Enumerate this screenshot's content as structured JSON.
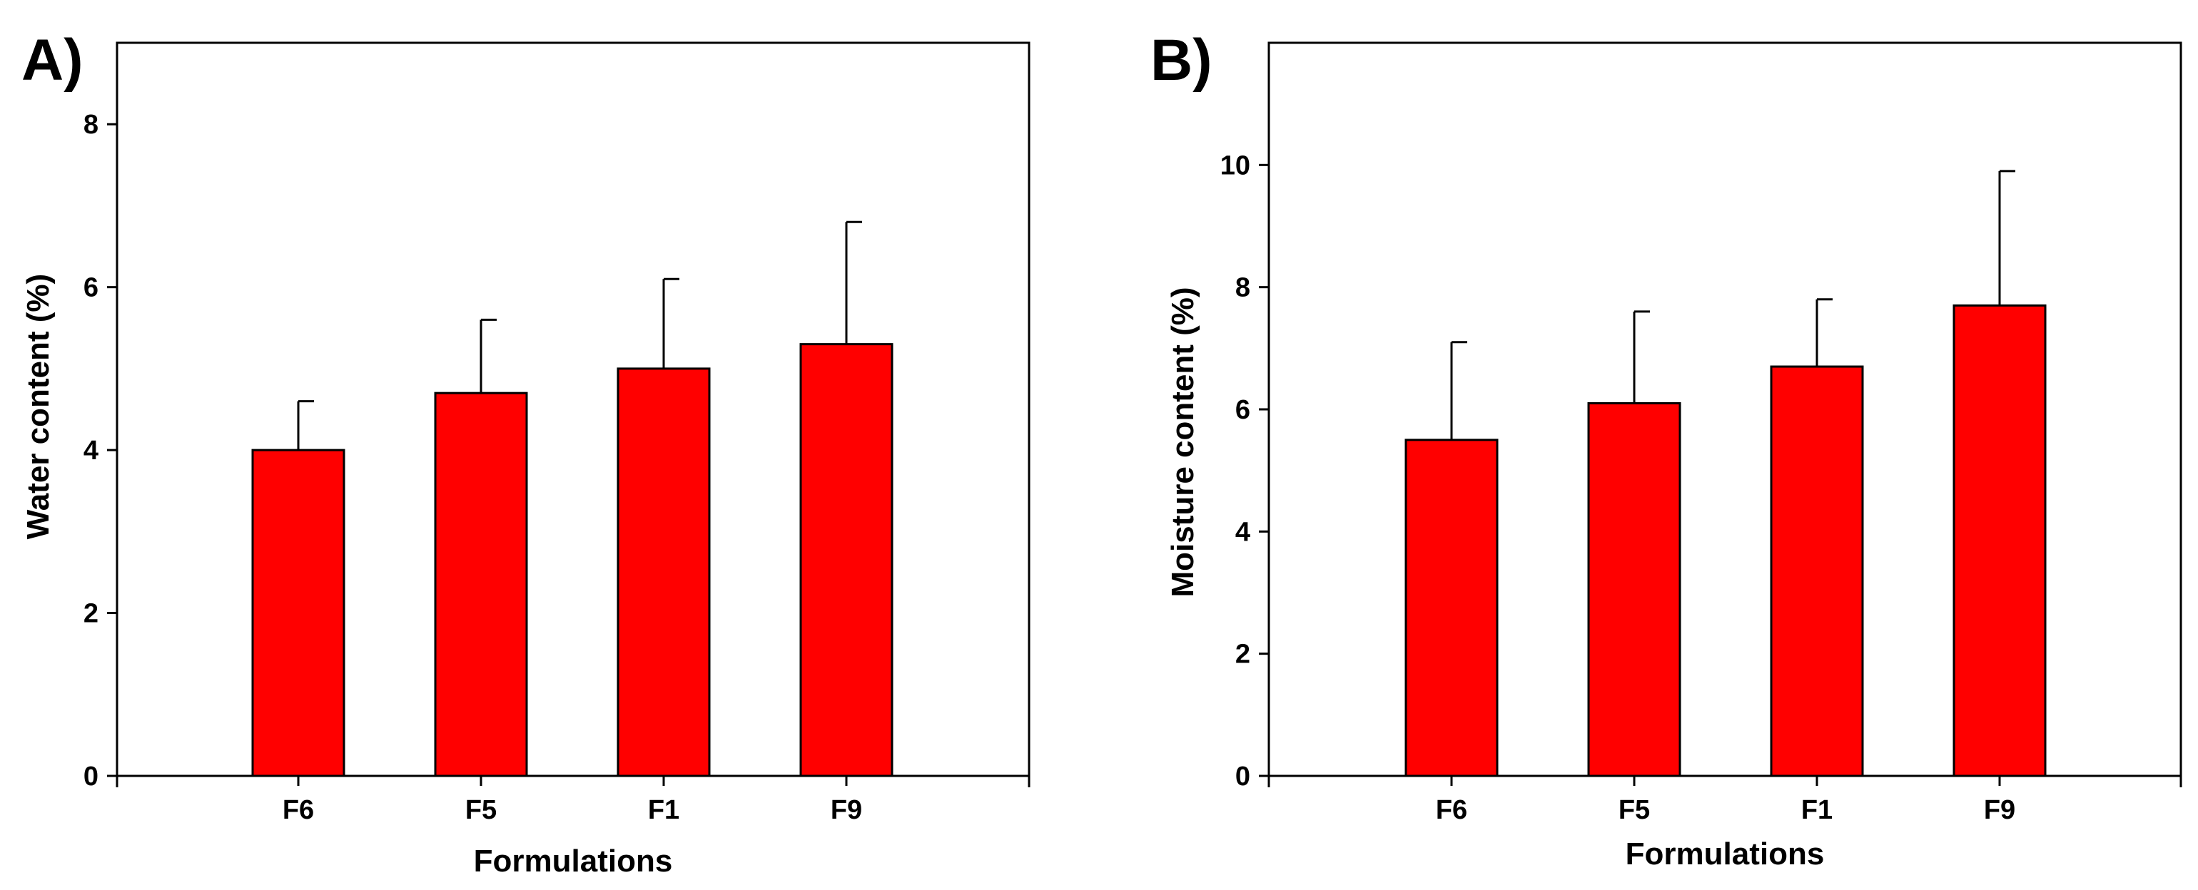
{
  "chart_data": [
    {
      "type": "bar",
      "panel_label": "A)",
      "title": "",
      "xlabel": "Formulations",
      "ylabel": "Water content (%)",
      "categories": [
        "F6",
        "F5",
        "F1",
        "F9"
      ],
      "values": [
        4.0,
        4.7,
        5.0,
        5.3
      ],
      "errors": [
        0.6,
        0.9,
        1.1,
        1.5
      ],
      "ylim": [
        0,
        9
      ],
      "yticks": [
        0,
        2,
        4,
        6,
        8
      ],
      "bar_color": "#ff0000",
      "grid": false
    },
    {
      "type": "bar",
      "panel_label": "B)",
      "title": "",
      "xlabel": "Formulations",
      "ylabel": "Moisture content (%)",
      "categories": [
        "F6",
        "F5",
        "F1",
        "F9"
      ],
      "values": [
        5.5,
        6.1,
        6.7,
        7.7
      ],
      "errors": [
        1.6,
        1.5,
        1.1,
        2.2
      ],
      "ylim": [
        0,
        12
      ],
      "yticks": [
        0,
        2,
        4,
        6,
        8,
        10
      ],
      "bar_color": "#ff0000",
      "grid": false
    }
  ]
}
